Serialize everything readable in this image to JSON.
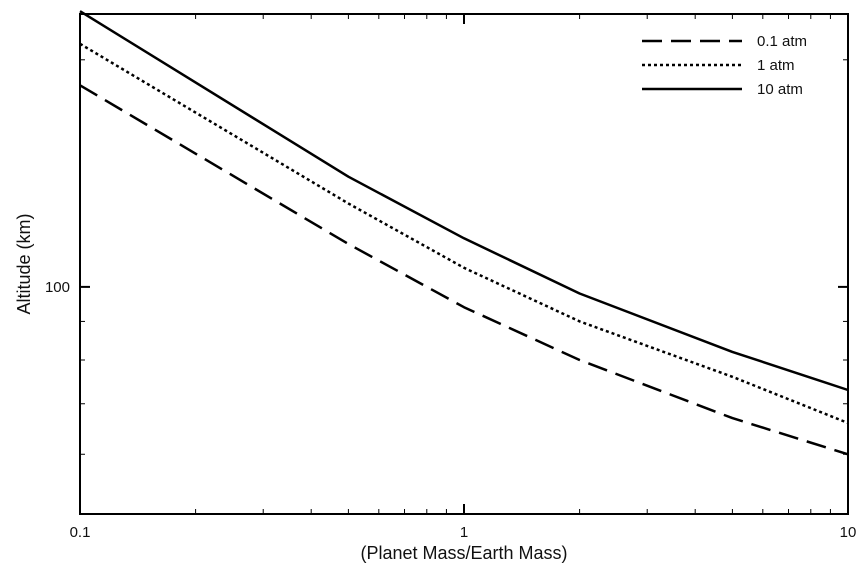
{
  "chart_data": {
    "type": "line",
    "title": "",
    "xlabel": "(Planet Mass/Earth Mass)",
    "ylabel": "Altitude (km)",
    "xscale": "log",
    "yscale": "log",
    "xlim": [
      0.1,
      10
    ],
    "ylim": [
      50,
      230
    ],
    "x_ticks": [
      {
        "value": 0.1,
        "label": "0.1"
      },
      {
        "value": 1,
        "label": "1"
      },
      {
        "value": 10,
        "label": "10"
      }
    ],
    "y_ticks": [
      {
        "value": 100,
        "label": "100"
      }
    ],
    "grid": false,
    "legend_position": "top-right",
    "series": [
      {
        "name": "0.1 atm",
        "style": "dashed",
        "x": [
          0.1,
          0.5,
          1,
          2,
          5,
          10
        ],
        "y": [
          185,
          114,
          94,
          80,
          67,
          60
        ]
      },
      {
        "name": "1 atm",
        "style": "dotted",
        "x": [
          0.1,
          0.5,
          1,
          2,
          5,
          10
        ],
        "y": [
          210,
          129,
          106,
          90,
          76,
          66
        ]
      },
      {
        "name": "10 atm",
        "style": "solid",
        "x": [
          0.1,
          0.5,
          1,
          2,
          5,
          10
        ],
        "y": [
          232,
          140,
          116,
          98,
          82,
          73
        ]
      }
    ]
  }
}
